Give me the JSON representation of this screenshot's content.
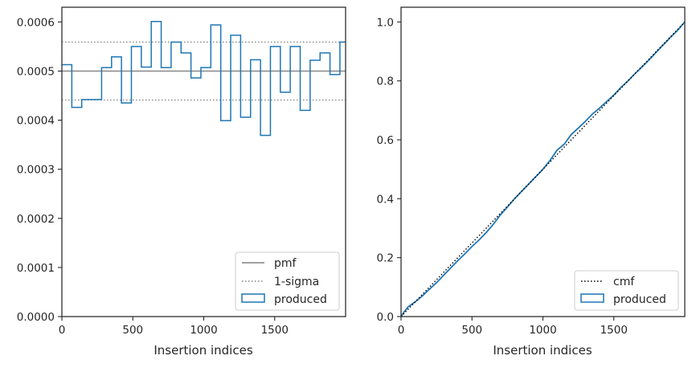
{
  "chart_data": [
    {
      "type": "histogram",
      "xlabel": "Insertion indices",
      "ylabel": "",
      "xlim": [
        0,
        2000
      ],
      "ylim": [
        0,
        0.00063
      ],
      "x_ticks": [
        0,
        500,
        1000,
        1500
      ],
      "x_tick_labels": [
        "0",
        "500",
        "1000",
        "1500"
      ],
      "y_ticks": [
        0,
        0.0001,
        0.0002,
        0.0003,
        0.0004,
        0.0005,
        0.0006
      ],
      "y_tick_labels": [
        "0.0000",
        "0.0001",
        "0.0002",
        "0.0003",
        "0.0004",
        "0.0005",
        "0.0006"
      ],
      "bin_edges": [
        0,
        70,
        140,
        210,
        280,
        350,
        420,
        490,
        560,
        630,
        700,
        770,
        840,
        910,
        980,
        1050,
        1120,
        1190,
        1260,
        1330,
        1400,
        1470,
        1540,
        1610,
        1680,
        1750,
        1820,
        1890,
        1960,
        2000
      ],
      "series": [
        {
          "name": "produced",
          "kind": "step",
          "color": "#1f77b4",
          "values": [
            0.000513,
            0.000426,
            0.000442,
            0.000442,
            0.000507,
            0.000529,
            0.000435,
            0.00055,
            0.000508,
            0.000601,
            0.000507,
            0.000559,
            0.000537,
            0.000486,
            0.000507,
            0.000594,
            0.000399,
            0.000573,
            0.000406,
            0.000523,
            0.000369,
            0.00055,
            0.000457,
            0.00055,
            0.00042,
            0.000522,
            0.000537,
            0.000493,
            0.000559
          ]
        },
        {
          "name": "pmf",
          "kind": "hline",
          "y": 0.0005,
          "color": "#808080",
          "style": "solid"
        },
        {
          "name": "1-sigma",
          "kind": "hlines",
          "y": [
            0.000559,
            0.000441
          ],
          "color": "#808080",
          "style": "dotted"
        }
      ],
      "legend": {
        "placement": "lower-right",
        "entries": [
          {
            "label": "pmf",
            "style": "solid",
            "color": "#808080"
          },
          {
            "label": "1-sigma",
            "style": "dotted",
            "color": "#808080"
          },
          {
            "label": "produced",
            "style": "patch",
            "color": "#1f77b4"
          }
        ]
      },
      "grid": false
    },
    {
      "type": "line",
      "xlabel": "Insertion indices",
      "ylabel": "",
      "xlim": [
        0,
        2000
      ],
      "ylim": [
        0,
        1.05
      ],
      "x_ticks": [
        0,
        500,
        1000,
        1500
      ],
      "x_tick_labels": [
        "0",
        "500",
        "1000",
        "1500"
      ],
      "y_ticks": [
        0,
        0.2,
        0.4,
        0.6,
        0.8,
        1.0
      ],
      "y_tick_labels": [
        "0.0",
        "0.2",
        "0.4",
        "0.6",
        "0.8",
        "1.0"
      ],
      "series": [
        {
          "name": "cmf",
          "kind": "line",
          "style": "dotted",
          "color": "#000000",
          "x": [
            0,
            2000
          ],
          "y": [
            0,
            1.0
          ]
        },
        {
          "name": "produced",
          "kind": "step",
          "color": "#1f77b4",
          "x": [
            0,
            20,
            50,
            100,
            150,
            200,
            250,
            300,
            350,
            400,
            450,
            500,
            550,
            600,
            650,
            700,
            750,
            800,
            850,
            900,
            950,
            1000,
            1050,
            1100,
            1150,
            1200,
            1250,
            1300,
            1350,
            1400,
            1450,
            1500,
            1550,
            1600,
            1650,
            1700,
            1750,
            1800,
            1850,
            1900,
            1950,
            2000
          ],
          "y": [
            0,
            0.015,
            0.033,
            0.05,
            0.07,
            0.093,
            0.115,
            0.14,
            0.165,
            0.19,
            0.213,
            0.238,
            0.26,
            0.285,
            0.313,
            0.345,
            0.372,
            0.4,
            0.425,
            0.45,
            0.475,
            0.5,
            0.53,
            0.565,
            0.585,
            0.618,
            0.64,
            0.663,
            0.688,
            0.708,
            0.73,
            0.752,
            0.778,
            0.8,
            0.825,
            0.848,
            0.872,
            0.898,
            0.923,
            0.948,
            0.972,
            1.0
          ]
        }
      ],
      "legend": {
        "placement": "lower-right",
        "entries": [
          {
            "label": "cmf",
            "style": "dotted",
            "color": "#000000"
          },
          {
            "label": "produced",
            "style": "patch",
            "color": "#1f77b4"
          }
        ]
      },
      "grid": false
    }
  ]
}
